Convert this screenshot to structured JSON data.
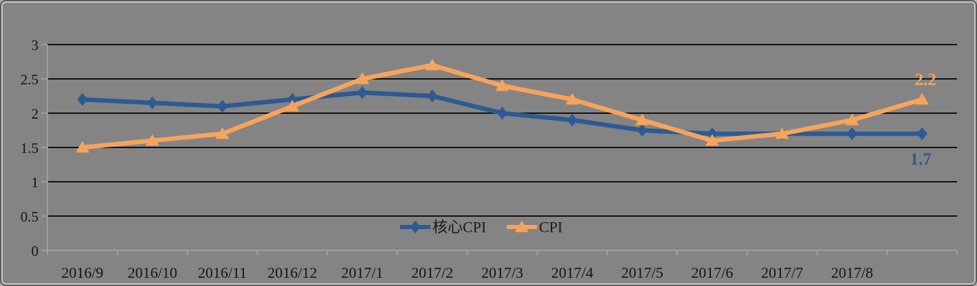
{
  "frame": {
    "background_color": "#848484",
    "outer_border_color": "#5c5c5c",
    "inner_border_color": "#c9c9c9"
  },
  "chart_data": {
    "type": "line",
    "title": "",
    "xlabel": "",
    "ylabel": "",
    "categories": [
      "2016/9",
      "2016/10",
      "2016/11",
      "2016/12",
      "2017/1",
      "2017/2",
      "2017/3",
      "2017/4",
      "2017/5",
      "2017/6",
      "2017/7",
      "2017/8",
      ""
    ],
    "series": [
      {
        "name": "核心CPI",
        "marker": "diamond",
        "color": "#2D5A93",
        "values": [
          2.2,
          2.15,
          2.1,
          2.2,
          2.3,
          2.25,
          2.0,
          1.9,
          1.75,
          1.7,
          1.7,
          1.7,
          1.7
        ],
        "end_label": "1.7"
      },
      {
        "name": "CPI",
        "marker": "triangle",
        "color": "#F6A45C",
        "values": [
          1.5,
          1.6,
          1.7,
          2.1,
          2.5,
          2.7,
          2.4,
          2.2,
          1.9,
          1.6,
          1.7,
          1.9,
          2.2
        ],
        "end_label": "2.2"
      }
    ],
    "ylim": [
      0,
      3
    ],
    "y_ticks": [
      0,
      0.5,
      1,
      1.5,
      2,
      2.5,
      3
    ],
    "y_tick_labels": [
      "0",
      "0.5",
      "1",
      "1.5",
      "2",
      "2.5",
      "3"
    ],
    "grid": "horizontal",
    "gridline_color": "#111111",
    "axis_color": "#a8a8a8",
    "text_color": "#141414",
    "legend_position": "bottom-center-inside",
    "legend": [
      "核心CPI",
      "CPI"
    ]
  }
}
